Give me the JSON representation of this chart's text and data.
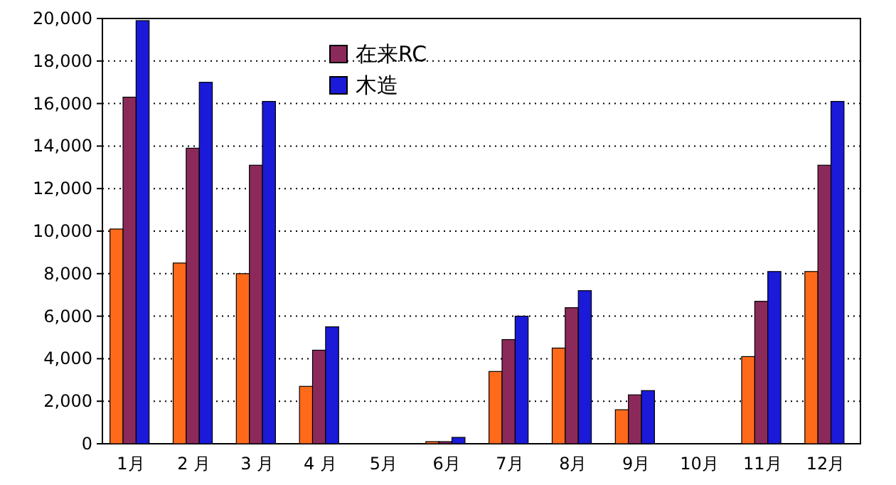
{
  "chart_data": {
    "type": "bar",
    "categories": [
      "1月",
      "2 月",
      "3 月",
      "4 月",
      "5月",
      "6月",
      "7月",
      "8月",
      "9月",
      "10月",
      "11月",
      "12月"
    ],
    "series": [
      {
        "color": "#ff6a1a",
        "values": [
          10100,
          8500,
          8000,
          2700,
          0,
          100,
          3400,
          4500,
          1600,
          0,
          4100,
          8100
        ]
      },
      {
        "name": "在来RC",
        "color": "#8b2a5a",
        "values": [
          16300,
          13900,
          13100,
          4400,
          0,
          100,
          4900,
          6400,
          2300,
          0,
          6700,
          13100
        ]
      },
      {
        "name": "木造",
        "color": "#1a1ad8",
        "values": [
          19900,
          17000,
          16100,
          5500,
          0,
          300,
          6000,
          7200,
          2500,
          0,
          8100,
          16100
        ]
      }
    ],
    "ylim": [
      0,
      20000
    ],
    "yticks": [
      0,
      {
        "value": 2000,
        "label": "2,000"
      },
      {
        "value": 4000,
        "label": "4,000"
      },
      {
        "value": 6000,
        "label": "6,000"
      },
      {
        "value": 8000,
        "label": "8,000"
      },
      {
        "value": 10000,
        "label": "10,000"
      },
      {
        "value": 12000,
        "label": "12,000"
      },
      {
        "value": 14000,
        "label": "14,000"
      },
      {
        "value": 16000,
        "label": "16,000"
      },
      {
        "value": 18000,
        "label": "18,000"
      },
      {
        "value": 20000,
        "label": "20,000"
      }
    ],
    "grid": "y",
    "legend": "top"
  }
}
